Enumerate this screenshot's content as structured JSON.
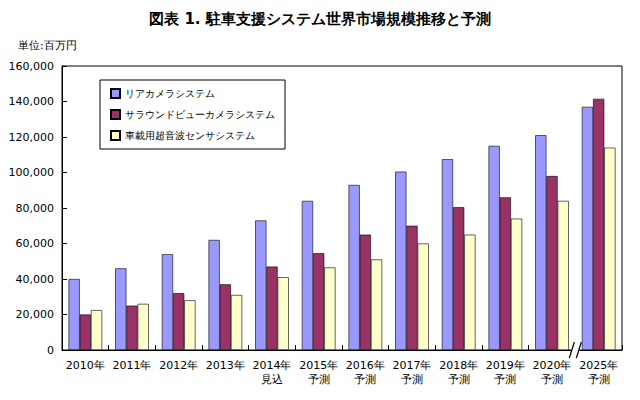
{
  "chart_data": {
    "type": "bar",
    "title": "図表 1. 駐車支援システム世界市場規模推移と予測",
    "ylabel": "単位:百万円",
    "categories": [
      "2010年",
      "2011年",
      "2012年",
      "2013年",
      "2014年\n見込",
      "2015年\n予測",
      "2016年\n予測",
      "2017年\n予測",
      "2018年\n予測",
      "2019年\n予測",
      "2020年\n予測",
      "2025年\n予測"
    ],
    "series": [
      {
        "name": "リアカメラシステム",
        "color": "#9999ff",
        "values": [
          40000,
          46000,
          54000,
          62000,
          73000,
          84000,
          93000,
          100500,
          107500,
          115000,
          121000,
          137000
        ]
      },
      {
        "name": "サラウンドビューカメラシステム",
        "color": "#993366",
        "values": [
          20000,
          25000,
          32000,
          37000,
          47000,
          54500,
          65000,
          70000,
          80500,
          86000,
          98000,
          141500
        ]
      },
      {
        "name": "車載用超音波センサシステム",
        "color": "#ffffcc",
        "values": [
          22500,
          26000,
          28000,
          31000,
          41000,
          46500,
          51000,
          60000,
          65000,
          74000,
          84000,
          114000
        ]
      }
    ],
    "ylim": [
      0,
      160000
    ],
    "yticks": [
      0,
      {
        "value": 20000,
        "label": "20,000"
      },
      {
        "value": 40000,
        "label": "40,000"
      },
      {
        "value": 60000,
        "label": "60,000"
      },
      {
        "value": 80000,
        "label": "80,000"
      },
      {
        "value": 100000,
        "label": "100,000"
      },
      {
        "value": 120000,
        "label": "120,000"
      },
      {
        "value": 140000,
        "label": "140,000"
      },
      {
        "value": 160000,
        "label": "160,000"
      }
    ],
    "grid": false,
    "legend": "upper left"
  }
}
